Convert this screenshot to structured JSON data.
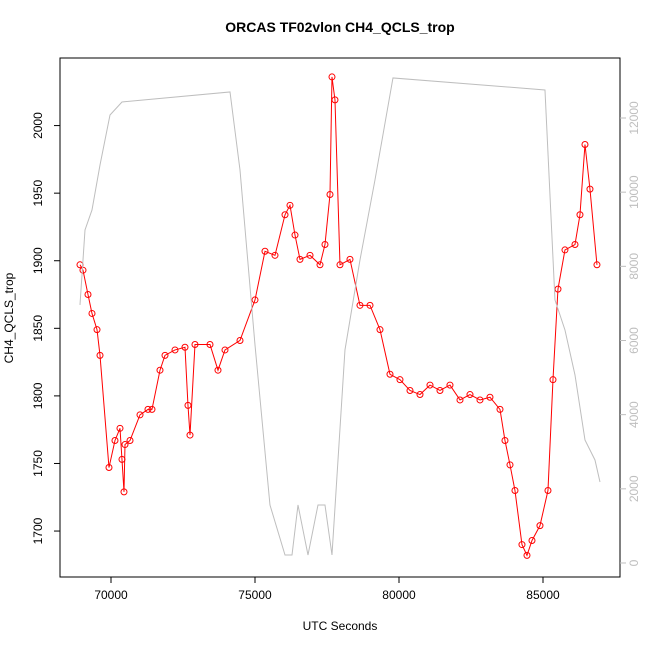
{
  "chart_data": {
    "type": "line",
    "title": "ORCAS TF02vlon CH4_QCLS_trop",
    "x_label": "UTC Seconds",
    "y_label": "CH4_QCLS_trop",
    "xlim": [
      68229,
      87674
    ],
    "xticks": [
      70000,
      75000,
      80000,
      85000
    ],
    "ylim": [
      1666,
      2050
    ],
    "yticks": [
      1700,
      1750,
      1800,
      1850,
      1900,
      1950,
      2000
    ],
    "y2lim": [
      -378,
      13618
    ],
    "y2ticks": [
      0,
      2000,
      4000,
      6000,
      8000,
      10000,
      12000
    ],
    "y2_color": "#bebebe",
    "series": [
      {
        "color": "#ff0000",
        "markers": true,
        "axis": "y",
        "x": [
          68923,
          69027,
          69201,
          69340,
          69514,
          69618,
          69930,
          70138,
          70312,
          70381,
          70451,
          70486,
          70660,
          71007,
          71284,
          71423,
          71701,
          71875,
          72222,
          72569,
          72673,
          72743,
          72916,
          73437,
          73715,
          73958,
          74479,
          75000,
          75347,
          75694,
          76042,
          76215,
          76389,
          76562,
          76910,
          77257,
          77430,
          77604,
          77673,
          77777,
          77951,
          78298,
          78645,
          78993,
          79340,
          79687,
          80034,
          80382,
          80729,
          81076,
          81423,
          81770,
          82118,
          82465,
          82812,
          83159,
          83507,
          83680,
          83854,
          84027,
          84270,
          84444,
          84618,
          84895,
          85173,
          85347,
          85520,
          85763,
          86111,
          86284,
          86458,
          86631,
          86874
        ],
        "values": [
          1897,
          1893,
          1875,
          1861,
          1849,
          1830,
          1747,
          1767,
          1776,
          1753,
          1729,
          1764,
          1767,
          1786,
          1790,
          1790,
          1819,
          1830,
          1834,
          1836,
          1793,
          1771,
          1838,
          1838,
          1819,
          1834,
          1841,
          1871,
          1907,
          1904,
          1934,
          1941,
          1919,
          1901,
          1904,
          1897,
          1912,
          1949,
          2036,
          2019,
          1897,
          1901,
          1867,
          1867,
          1849,
          1816,
          1812,
          1804,
          1801,
          1808,
          1804,
          1808,
          1797,
          1801,
          1797,
          1799,
          1790,
          1767,
          1749,
          1730,
          1690,
          1682,
          1693,
          1704,
          1730,
          1812,
          1879,
          1908,
          1912,
          1934,
          1986,
          1953,
          1897
        ]
      },
      {
        "color": "#bebebe",
        "markers": false,
        "axis": "y2",
        "x": [
          68923,
          69097,
          69340,
          69618,
          69965,
          70381,
          74132,
          74479,
          75000,
          75520,
          76042,
          76285,
          76493,
          76840,
          77187,
          77430,
          77673,
          78124,
          78645,
          79166,
          79791,
          85069,
          85416,
          85763,
          86111,
          86458,
          86805,
          86979
        ],
        "values": [
          6958,
          8980,
          9520,
          10733,
          12080,
          12432,
          12702,
          10598,
          5879,
          1564,
          216,
          216,
          1564,
          216,
          1564,
          1564,
          216,
          5744,
          8171,
          10329,
          13080,
          12756,
          7093,
          6284,
          5070,
          3317,
          2778,
          2184
        ]
      }
    ]
  }
}
